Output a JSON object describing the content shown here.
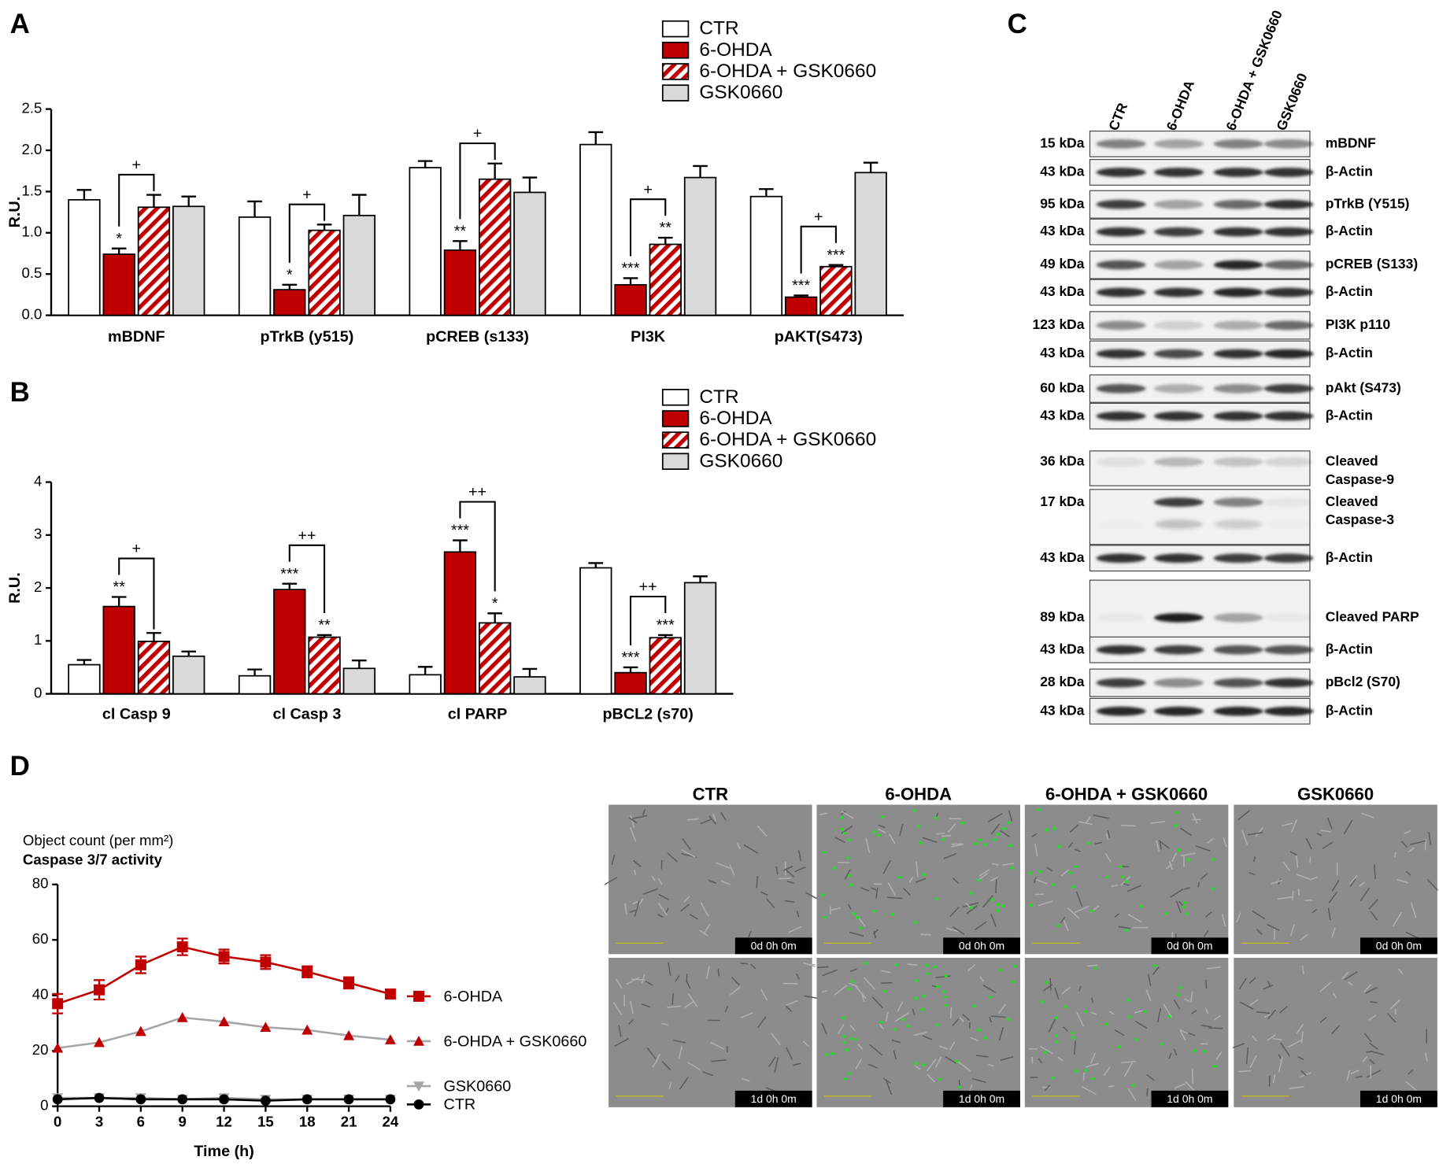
{
  "panel_labels": [
    "A",
    "B",
    "C",
    "D"
  ],
  "chart_data": [
    {
      "type": "bar",
      "ylabel": "R.U.",
      "categories": [
        "mBDNF",
        "pTrkB (y515)",
        "pCREB (s133)",
        "PI3K",
        "pAKT(S473)"
      ],
      "ylim": [
        0,
        2.5
      ],
      "yticks": [
        {
          "value": 0,
          "label": "0.0"
        },
        0.5,
        {
          "value": 1,
          "label": "1.0"
        },
        1.5,
        {
          "value": 2,
          "label": "2.0"
        },
        2.5
      ],
      "series": [
        {
          "name": "CTR",
          "color": "#ffffff",
          "values": [
            1.4,
            1.19,
            1.79,
            2.07,
            1.44
          ],
          "errors": [
            0.12,
            0.19,
            0.08,
            0.15,
            0.09
          ]
        },
        {
          "name": "6-OHDA",
          "color": "#c00000",
          "values": [
            0.74,
            0.31,
            0.79,
            0.37,
            0.22
          ],
          "errors": [
            0.07,
            0.06,
            0.11,
            0.08,
            0.02
          ],
          "labels": [
            "*",
            "*",
            "**",
            "***",
            "***"
          ]
        },
        {
          "name": "6-OHDA + GSK0660",
          "color": "#c00000",
          "hatch": true,
          "values": [
            1.31,
            1.03,
            1.65,
            0.86,
            0.59
          ],
          "errors": [
            0.15,
            0.07,
            0.19,
            0.08,
            0.02
          ],
          "labels": [
            null,
            null,
            null,
            "**",
            "***"
          ]
        },
        {
          "name": "GSK0660",
          "color": "#d9d9d9",
          "values": [
            1.32,
            1.21,
            1.49,
            1.67,
            1.73
          ],
          "errors": [
            0.12,
            0.25,
            0.18,
            0.14,
            0.12
          ]
        }
      ],
      "comparisons": [
        "+",
        "+",
        "+",
        "+",
        "+"
      ]
    },
    {
      "type": "bar",
      "ylabel": "R.U.",
      "categories": [
        "cl Casp 9",
        "cl Casp 3",
        "cl PARP",
        "pBCL2 (s70)"
      ],
      "ylim": [
        0,
        4
      ],
      "yticks": [
        0,
        1,
        2,
        3,
        4
      ],
      "series": [
        {
          "name": "CTR",
          "color": "#ffffff",
          "values": [
            0.55,
            0.34,
            0.36,
            2.38
          ],
          "errors": [
            0.09,
            0.12,
            0.15,
            0.09
          ]
        },
        {
          "name": "6-OHDA",
          "color": "#c00000",
          "values": [
            1.65,
            1.97,
            2.68,
            0.4
          ],
          "errors": [
            0.18,
            0.11,
            0.22,
            0.1
          ],
          "labels": [
            "**",
            "***",
            "***",
            "***"
          ]
        },
        {
          "name": "6-OHDA + GSK0660",
          "color": "#c00000",
          "hatch": true,
          "values": [
            0.99,
            1.07,
            1.34,
            1.06
          ],
          "errors": [
            0.16,
            0.04,
            0.18,
            0.05
          ],
          "labels": [
            null,
            "**",
            "*",
            "***"
          ]
        },
        {
          "name": "GSK0660",
          "color": "#d9d9d9",
          "values": [
            0.71,
            0.48,
            0.32,
            2.1
          ],
          "errors": [
            0.09,
            0.15,
            0.15,
            0.12
          ]
        }
      ],
      "comparisons": [
        "+",
        "++",
        "++",
        "++"
      ]
    },
    {
      "type": "line",
      "ylabel": "Object count (per mm²)",
      "subtitle": "Caspase 3/7 activity",
      "xlabel": "Time (h)",
      "x": [
        0,
        3,
        6,
        9,
        12,
        15,
        18,
        21,
        24
      ],
      "xlim": [
        0,
        24
      ],
      "xticks": [
        0,
        3,
        6,
        9,
        12,
        15,
        18,
        21,
        24
      ],
      "ylim": [
        0,
        80
      ],
      "yticks": [
        0,
        20,
        40,
        60,
        80
      ],
      "series": [
        {
          "name": "6-OHDA",
          "color": "#c00000",
          "line_color": "#c00000",
          "marker": "square",
          "values": [
            37,
            42,
            51,
            57.5,
            54,
            52,
            48.5,
            44.5,
            40.5
          ],
          "errors": [
            3.5,
            3.5,
            3,
            3,
            2.5,
            2.5,
            2,
            2,
            1.5
          ]
        },
        {
          "name": "6-OHDA + GSK0660",
          "color": "#c00000",
          "line_color": "#a6a6a6",
          "marker": "triangle",
          "values": [
            21,
            23,
            27,
            32,
            30.5,
            28.5,
            27.5,
            25.5,
            24
          ]
        },
        {
          "name": "GSK0660",
          "color": "#a6a6a6",
          "line_color": "#a6a6a6",
          "marker": "triangle-down",
          "values": [
            3,
            3,
            3,
            2.5,
            3,
            2.5,
            2.5,
            2.5,
            2.5
          ]
        },
        {
          "name": "CTR",
          "color": "#000000",
          "line_color": "#000000",
          "marker": "circle",
          "values": [
            2.5,
            3,
            2.5,
            2.5,
            2.5,
            2,
            2.5,
            2.5,
            2.5
          ]
        }
      ]
    }
  ],
  "western_blot": {
    "lanes": [
      "CTR",
      "6-OHDA",
      "6-OHDA + GSK0660",
      "GSK0660"
    ],
    "rows": [
      {
        "kda": "15 kDa",
        "label": [
          "mBDNF"
        ]
      },
      {
        "kda": "43 kDa",
        "label": [
          "β-Actin"
        ]
      },
      {
        "kda": "95 kDa",
        "label": [
          "pTrkB (Y515)"
        ]
      },
      {
        "kda": "43 kDa",
        "label": [
          "β-Actin"
        ]
      },
      {
        "kda": "49 kDa",
        "label": [
          "pCREB (S133)"
        ]
      },
      {
        "kda": "43 kDa",
        "label": [
          "β-Actin"
        ]
      },
      {
        "kda": "123 kDa",
        "label": [
          "PI3K p110"
        ]
      },
      {
        "kda": "43 kDa",
        "label": [
          "β-Actin"
        ]
      },
      {
        "kda": "60 kDa",
        "label": [
          "pAkt (S473)"
        ]
      },
      {
        "kda": "43 kDa",
        "label": [
          "β-Actin"
        ]
      },
      {
        "kda": "36 kDa",
        "label": [
          "Cleaved",
          "Caspase-9"
        ]
      },
      {
        "kda": "17 kDa",
        "label": [
          "Cleaved",
          "Caspase-3"
        ]
      },
      {
        "kda": "43 kDa",
        "label": [
          "β-Actin"
        ]
      },
      {
        "kda": "89 kDa",
        "label": [
          "Cleaved PARP"
        ]
      },
      {
        "kda": "43 kDa",
        "label": [
          "β-Actin"
        ]
      },
      {
        "kda": "28 kDa",
        "label": [
          "pBcl2 (S70)"
        ]
      },
      {
        "kda": "43 kDa",
        "label": [
          "β-Actin"
        ]
      }
    ]
  },
  "micrographs": {
    "columns": [
      "CTR",
      "6-OHDA",
      "6-OHDA + GSK0660",
      "GSK0660"
    ],
    "timestamps": [
      "0d 0h 0m",
      "1d 0h 0m"
    ]
  }
}
